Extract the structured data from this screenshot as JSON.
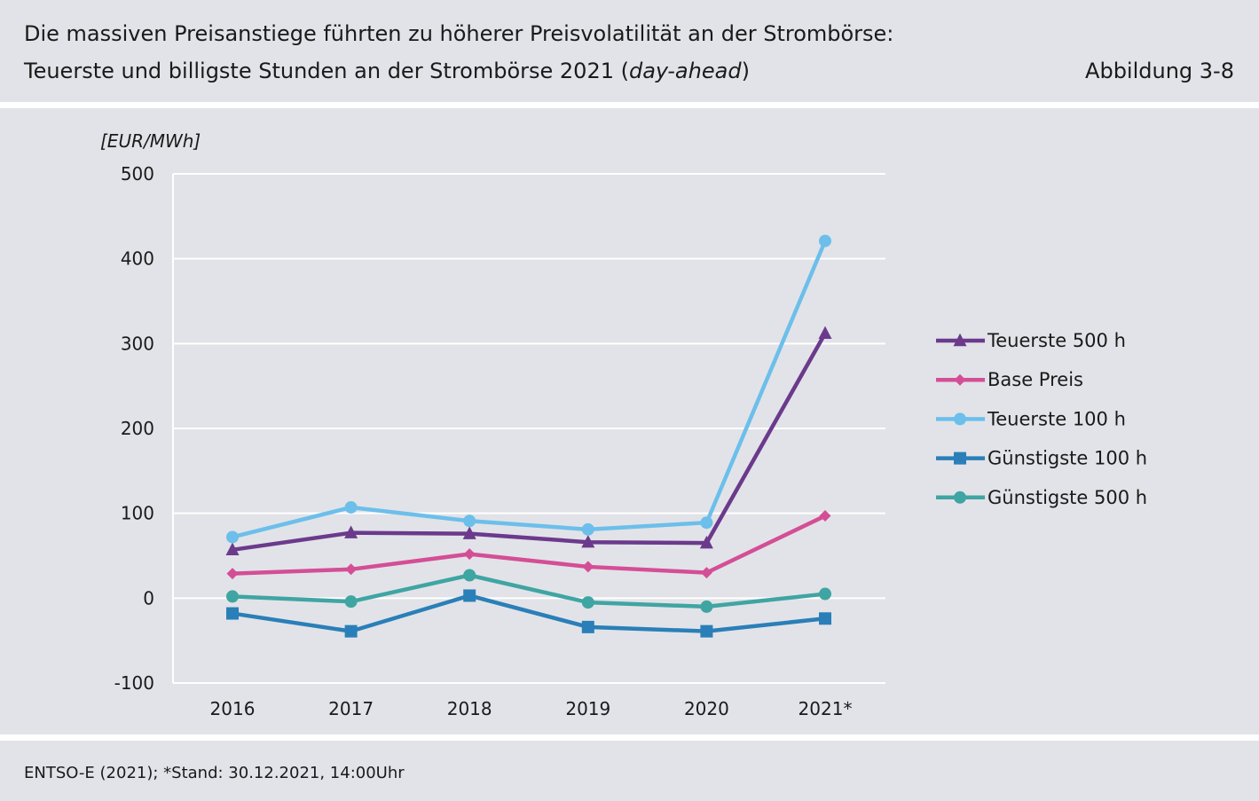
{
  "header": {
    "title_line1": "Die massiven Preisanstiege führten zu höherer Preisvolatilität an der Strombörse:",
    "title_line2_prefix": "Teuerste und billigste Stunden an der Strombörse 2021 (",
    "title_line2_italic": "day-ahead",
    "title_line2_suffix": ")",
    "figure_ref": "Abbildung 3-8"
  },
  "footer": {
    "source": "ENTSO-E (2021); *Stand: 30.12.2021, 14:00Uhr"
  },
  "chart_data": {
    "type": "line",
    "ylabel": "[EUR/MWh]",
    "ylim": [
      -100,
      500
    ],
    "yticks": [
      500,
      400,
      300,
      200,
      100,
      0,
      -100
    ],
    "categories": [
      "2016",
      "2017",
      "2018",
      "2019",
      "2020",
      "2021*"
    ],
    "grid": "horizontal",
    "legend_position": "right",
    "series": [
      {
        "name": "Teuerste 500 h",
        "color": "#6b3a8c",
        "marker": "triangle",
        "values": [
          57,
          77,
          76,
          66,
          65,
          312
        ]
      },
      {
        "name": "Base Preis",
        "color": "#d44e96",
        "marker": "diamond",
        "values": [
          29,
          34,
          52,
          37,
          30,
          97
        ]
      },
      {
        "name": "Teuerste 100 h",
        "color": "#6cbfea",
        "marker": "circle",
        "values": [
          72,
          107,
          91,
          81,
          89,
          421
        ]
      },
      {
        "name": "Günstigste 100 h",
        "color": "#2a7fb8",
        "marker": "square",
        "values": [
          -18,
          -39,
          3,
          -34,
          -39,
          -24
        ]
      },
      {
        "name": "Günstigste 500 h",
        "color": "#3fa5a3",
        "marker": "circle",
        "values": [
          2,
          -4,
          27,
          -5,
          -10,
          5
        ]
      }
    ]
  }
}
